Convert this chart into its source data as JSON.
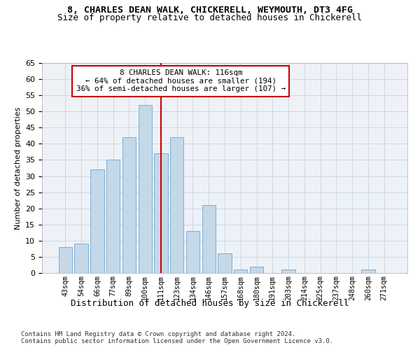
{
  "title1": "8, CHARLES DEAN WALK, CHICKERELL, WEYMOUTH, DT3 4FG",
  "title2": "Size of property relative to detached houses in Chickerell",
  "xlabel": "Distribution of detached houses by size in Chickerell",
  "ylabel": "Number of detached properties",
  "categories": [
    "43sqm",
    "54sqm",
    "66sqm",
    "77sqm",
    "89sqm",
    "100sqm",
    "111sqm",
    "123sqm",
    "134sqm",
    "146sqm",
    "157sqm",
    "168sqm",
    "180sqm",
    "191sqm",
    "203sqm",
    "214sqm",
    "225sqm",
    "237sqm",
    "248sqm",
    "260sqm",
    "271sqm"
  ],
  "values": [
    8,
    9,
    32,
    35,
    42,
    52,
    37,
    42,
    13,
    21,
    6,
    1,
    2,
    0,
    1,
    0,
    0,
    0,
    0,
    1,
    0
  ],
  "bar_color": "#c5d8e8",
  "bar_edge_color": "#7bafd4",
  "property_line_index": 6,
  "property_line_color": "#cc0000",
  "annotation_text": "8 CHARLES DEAN WALK: 116sqm\n← 64% of detached houses are smaller (194)\n36% of semi-detached houses are larger (107) →",
  "annotation_box_color": "#ffffff",
  "annotation_box_edge_color": "#cc0000",
  "ylim": [
    0,
    65
  ],
  "yticks": [
    0,
    5,
    10,
    15,
    20,
    25,
    30,
    35,
    40,
    45,
    50,
    55,
    60,
    65
  ],
  "grid_color": "#c8d8e8",
  "bg_color": "#eef2f7",
  "fig_bg_color": "#ffffff",
  "footnote1": "Contains HM Land Registry data © Crown copyright and database right 2024.",
  "footnote2": "Contains public sector information licensed under the Open Government Licence v3.0."
}
